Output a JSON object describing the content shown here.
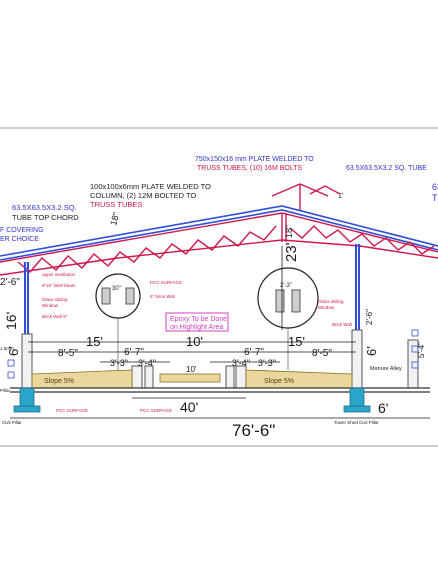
{
  "annotations": {
    "top_plate_a": "750x150x16 mm PLATE WELDED TO",
    "top_plate_b": "TRUSS TUBES, (10) 16M BOLTS",
    "right_tube": "63.5X63.5X3.2 SQ. TUBE",
    "right_tube_cut": "63",
    "right_tube_cut2": "T",
    "plate_col_a": "100x100x6mm PLATE WELDED TO",
    "plate_col_b": "COLUMN, (2) 12M BOLTED TO",
    "plate_col_c": "TRUSS TUBES",
    "left_tube_a": "63.5X63.5X3.2 SQ.",
    "left_tube_b": "TUBE TOP CHORD",
    "covering_a": "F COVERING",
    "covering_b": "ER CHOICE",
    "rise_left": "18\"",
    "rise_right": "18\"",
    "eaves_small": "1'",
    "gable_height": "23'",
    "left_vert": "2'-6\"",
    "dim_16": "16'",
    "dim_6_left": "6'",
    "dim_15_left": "15'",
    "dim_15_right": "15'",
    "dim_10": "10'",
    "dim_10_small": "10'",
    "dim_8_5_left": "8'-5\"",
    "dim_8_5_right": "8'-5\"",
    "dim_6_7_left": "6'-7\"",
    "dim_6_7_right": "6'-7\"",
    "dim_3_3a": "3'-3\"",
    "dim_3_4a": "3'-4\"",
    "dim_3_4b": "3'-4\"",
    "dim_3_3b": "3'-3\"",
    "dim_6_right": "6'",
    "dim_2_6_right": "2'-6\"",
    "dim_5_4": "5'-4\"",
    "dim_40": "40'",
    "dim_6_bottom": "6'",
    "dim_overall": "76'-6\"",
    "slope_left": "Slope 5%",
    "slope_right": "Slope 5%",
    "epoxy_a": "Epoxy To be Done",
    "epoxy_b": "on Highlight Area",
    "pcc_top": "PCC SURFACE",
    "brick_wall_9": "9\" brick Wall",
    "detail_dim_left": "30\"",
    "detail_dim_right": "2'-3\"",
    "upper_ventilation": "upper ventilation",
    "lintel_beam": "9\"x9\" lintel beam",
    "glass_left_a": "Glass sliding",
    "glass_left_b": "Window",
    "brick_wall_left": "Brick Wall 9\"",
    "glass_right_a": "Glass sliding",
    "glass_right_b": "Window",
    "brick_right": "Brick Wall",
    "manure_alley": "Manure Alley",
    "pcc_bottom_left": "PCC SURFACE",
    "pcc_bottom_center": "PCC SURFACE",
    "civil_pillar_left": "Civil Pillar",
    "civil_pillar_right": "Tower Shed Civil Pillar",
    "left_small_a": "1.5mm",
    "left_small_b": "Pillar"
  },
  "colors": {
    "truss": "#d0184c",
    "column": "#2f4fd8",
    "dimension": "#1a1a1a",
    "annotation": "#3333cc",
    "sand": "#ead79c",
    "pillar": "#2aa5c9",
    "epoxy": "#d63fc1"
  }
}
